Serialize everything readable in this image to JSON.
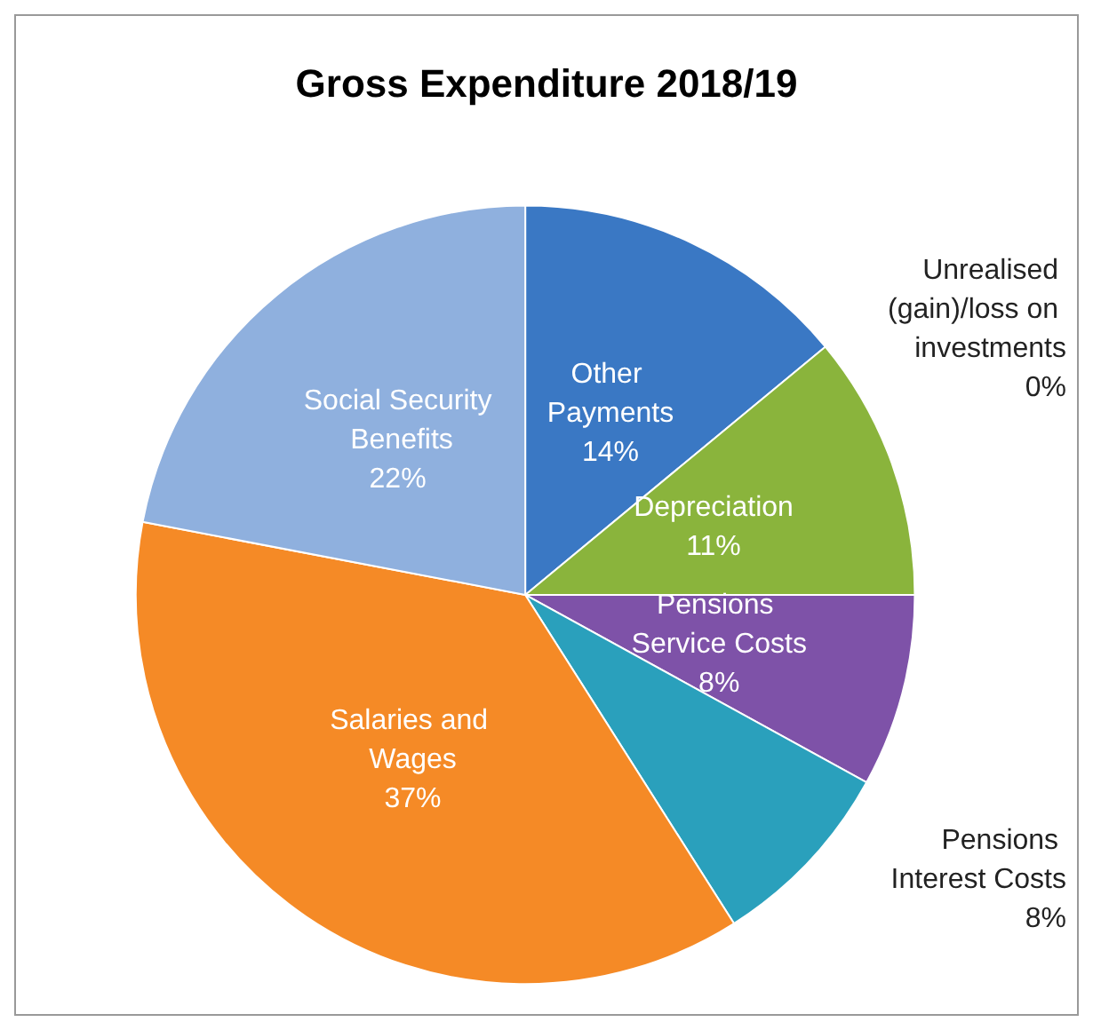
{
  "chart_data": {
    "type": "pie",
    "title": "Gross Expenditure 2018/19",
    "categories": [
      "Other Payments",
      "Unrealised (gain)/loss on investments",
      "Depreciation",
      "Pensions Service Costs",
      "Pensions Interest Costs",
      "Salaries and Wages",
      "Social Security Benefits"
    ],
    "values": [
      14,
      0,
      11,
      8,
      8,
      37,
      22
    ],
    "colors": [
      "#3a78c4",
      "#c0504d",
      "#8ab43c",
      "#7e52a8",
      "#2aa0bc",
      "#f58a26",
      "#8fb0de"
    ],
    "value_labels": [
      "14%",
      "0%",
      "11%",
      "8%",
      "8%",
      "37%",
      "22%"
    ],
    "legend": false
  }
}
